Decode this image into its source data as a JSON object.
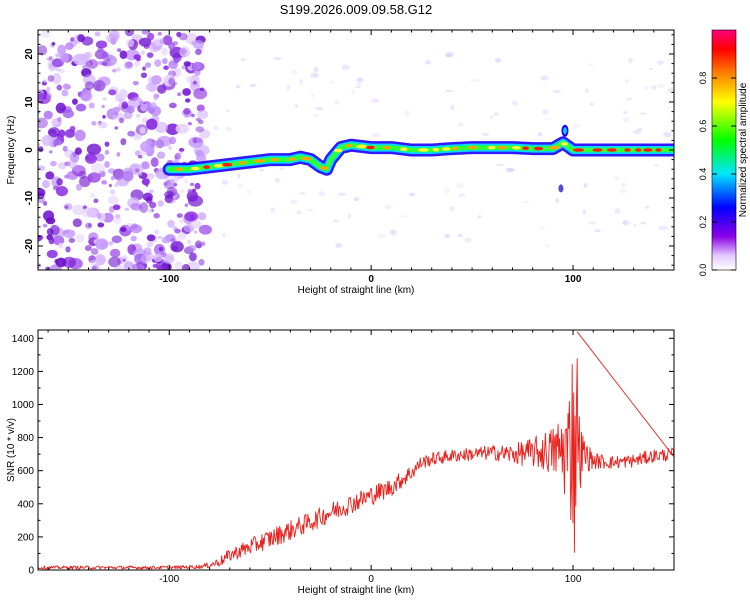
{
  "chart_data": [
    {
      "type": "heatmap",
      "title": "S199.2026.009.09.58.G12",
      "xlabel": "Height of straight line (km)",
      "ylabel": "Frequency (Hz)",
      "xlim": [
        -165,
        150
      ],
      "ylim": [
        -25,
        25
      ],
      "xticks": [
        -100,
        0,
        100
      ],
      "yticks": [
        -20,
        -10,
        0,
        10,
        20
      ],
      "noise_region_x": [
        -165,
        -85
      ],
      "ridge": {
        "x": [
          -100,
          -90,
          -80,
          -70,
          -60,
          -50,
          -40,
          -35,
          -30,
          -25,
          -22,
          -20,
          -15,
          -10,
          0,
          10,
          20,
          30,
          40,
          50,
          60,
          70,
          80,
          90,
          95,
          100,
          110,
          120,
          130,
          140,
          150
        ],
        "frequency": [
          -4,
          -4,
          -3.5,
          -3,
          -2.5,
          -2,
          -2,
          -1.5,
          -2,
          -3.5,
          -4,
          -2,
          0.5,
          1,
          0.5,
          0.5,
          0,
          0,
          0.3,
          0.5,
          0.5,
          0.5,
          0.3,
          0.3,
          1.5,
          0,
          0,
          0,
          0,
          0,
          0
        ]
      },
      "colorbar": {
        "label": "Normalized spectral amplitude",
        "range": [
          0.0,
          1.0
        ],
        "ticks": [
          0.0,
          0.2,
          0.4,
          0.6,
          0.8
        ],
        "colors": [
          "#ffffff",
          "#8a00e6",
          "#0000ff",
          "#00e5ff",
          "#00ff00",
          "#ffff00",
          "#ff8000",
          "#ff0000",
          "#ff0080"
        ]
      }
    },
    {
      "type": "line",
      "xlabel": "Height of straight line (km)",
      "ylabel": "SNR (10 * v/v)",
      "xlim": [
        -165,
        150
      ],
      "ylim": [
        0,
        1450
      ],
      "xticks": [
        -100,
        0,
        100
      ],
      "yticks": [
        0,
        200,
        400,
        600,
        800,
        1000,
        1200,
        1400
      ],
      "color": "#e8201c",
      "envelope": {
        "x": [
          -165,
          -100,
          -85,
          -80,
          -75,
          -70,
          -60,
          -50,
          -40,
          -30,
          -20,
          -10,
          0,
          10,
          20,
          25,
          30,
          40,
          50,
          60,
          70,
          80,
          90,
          95,
          100,
          105,
          110,
          120,
          130,
          140,
          150
        ],
        "mean": [
          15,
          15,
          20,
          30,
          50,
          90,
          140,
          190,
          240,
          290,
          350,
          400,
          450,
          500,
          590,
          650,
          670,
          690,
          700,
          710,
          700,
          710,
          720,
          720,
          720,
          700,
          660,
          650,
          660,
          690,
          700
        ],
        "spread": [
          10,
          10,
          12,
          18,
          30,
          40,
          50,
          60,
          60,
          60,
          60,
          60,
          60,
          55,
          50,
          40,
          40,
          40,
          40,
          45,
          60,
          90,
          150,
          250,
          500,
          120,
          50,
          40,
          40,
          40,
          40
        ]
      },
      "peak": {
        "x": 102,
        "y": 1440
      }
    }
  ]
}
